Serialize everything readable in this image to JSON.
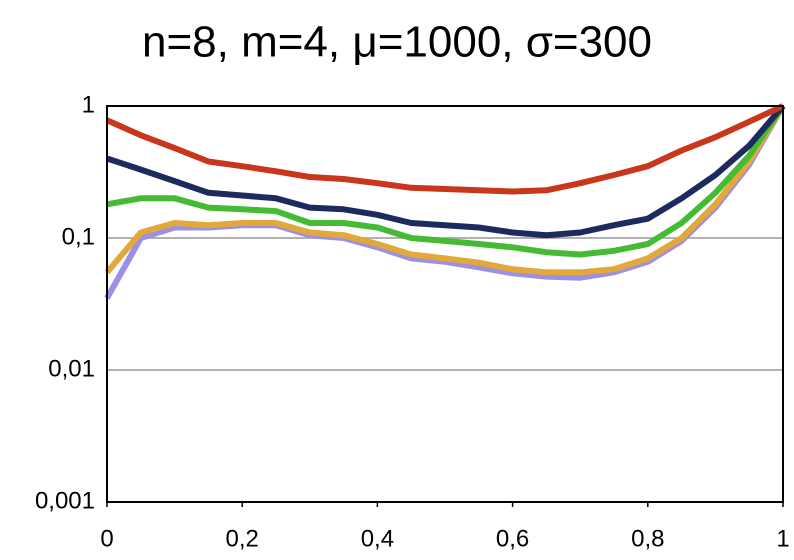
{
  "chart_data": {
    "type": "line",
    "title": "n=8, m=4, μ=1000, σ=300",
    "x": [
      0,
      0.05,
      0.1,
      0.15,
      0.2,
      0.25,
      0.3,
      0.35,
      0.4,
      0.45,
      0.5,
      0.55,
      0.6,
      0.65,
      0.7,
      0.75,
      0.8,
      0.85,
      0.9,
      0.95,
      1
    ],
    "series": [
      {
        "color": "#9b8fe6",
        "values": [
          0.035,
          0.1,
          0.12,
          0.12,
          0.125,
          0.125,
          0.105,
          0.1,
          0.085,
          0.07,
          0.066,
          0.06,
          0.054,
          0.051,
          0.05,
          0.055,
          0.066,
          0.095,
          0.17,
          0.36,
          1
        ]
      },
      {
        "color": "#e3a83a",
        "values": [
          0.055,
          0.11,
          0.13,
          0.125,
          0.13,
          0.13,
          0.11,
          0.105,
          0.09,
          0.075,
          0.07,
          0.065,
          0.058,
          0.055,
          0.055,
          0.058,
          0.07,
          0.1,
          0.18,
          0.38,
          1
        ]
      },
      {
        "color": "#44bb33",
        "values": [
          0.18,
          0.2,
          0.2,
          0.17,
          0.165,
          0.16,
          0.13,
          0.13,
          0.12,
          0.1,
          0.095,
          0.09,
          0.085,
          0.078,
          0.075,
          0.08,
          0.09,
          0.13,
          0.22,
          0.42,
          1
        ]
      },
      {
        "color": "#1c2a5e",
        "values": [
          0.4,
          0.33,
          0.27,
          0.22,
          0.21,
          0.2,
          0.17,
          0.165,
          0.15,
          0.13,
          0.125,
          0.12,
          0.11,
          0.105,
          0.11,
          0.125,
          0.14,
          0.2,
          0.3,
          0.5,
          1
        ]
      },
      {
        "color": "#c8361c",
        "values": [
          0.78,
          0.6,
          0.48,
          0.38,
          0.35,
          0.32,
          0.29,
          0.28,
          0.26,
          0.24,
          0.235,
          0.23,
          0.225,
          0.23,
          0.26,
          0.3,
          0.35,
          0.46,
          0.58,
          0.76,
          1
        ]
      }
    ],
    "xlim": [
      0,
      1
    ],
    "xticks": [
      0,
      {
        "value": 0.2,
        "label": "0,2"
      },
      {
        "value": 0.4,
        "label": "0,4"
      },
      {
        "value": 0.6,
        "label": "0,6"
      },
      {
        "value": 0.8,
        "label": "0,8"
      },
      1
    ],
    "ylim": [
      0.001,
      1
    ],
    "ylog": true,
    "yticks": [
      {
        "value": 0.001,
        "label": "0,001"
      },
      {
        "value": 0.01,
        "label": "0,01"
      },
      {
        "value": 0.1,
        "label": "0,1"
      },
      1
    ],
    "grid": true
  }
}
